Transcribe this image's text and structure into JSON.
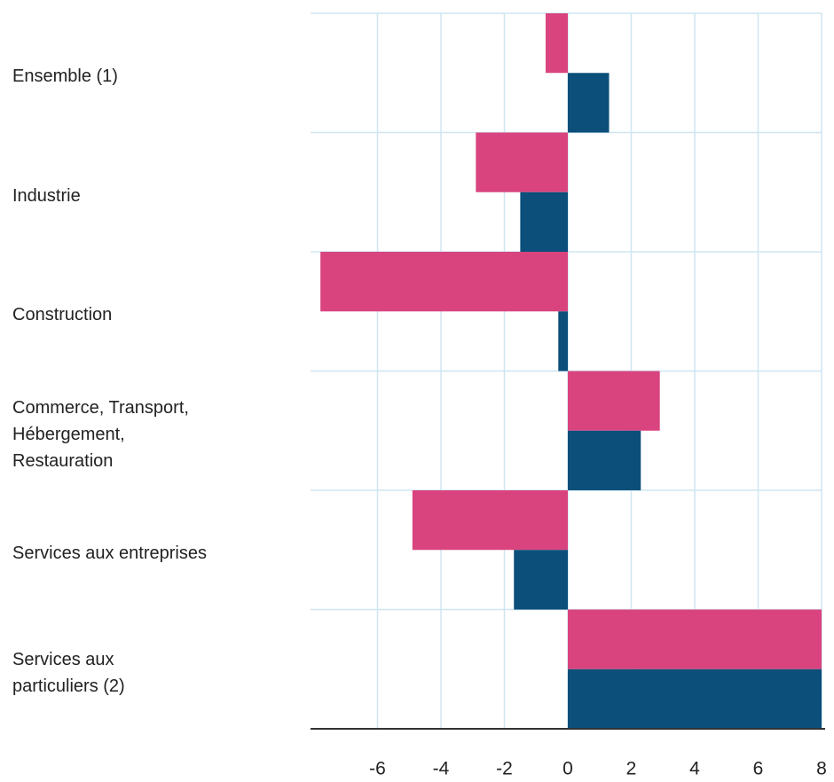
{
  "chart_data": {
    "type": "barh",
    "categories": [
      "Ensemble (1)",
      "Industrie",
      "Construction",
      "Commerce, Transport,\nHébergement,\nRestauration",
      "Services aux entreprises",
      "Services aux\nparticuliers (2)"
    ],
    "series": [
      {
        "color": "#d9447f",
        "values": [
          -0.7,
          -2.9,
          -7.8,
          2.9,
          -4.9,
          8.0
        ]
      },
      {
        "color": "#0b4f7a",
        "values": [
          1.3,
          -1.5,
          -0.3,
          2.3,
          -1.7,
          8.0
        ]
      }
    ],
    "xlim": [
      -8,
      8
    ],
    "xticks": [
      -6,
      -4,
      -2,
      0,
      2,
      4,
      6,
      8
    ],
    "grid": true
  }
}
